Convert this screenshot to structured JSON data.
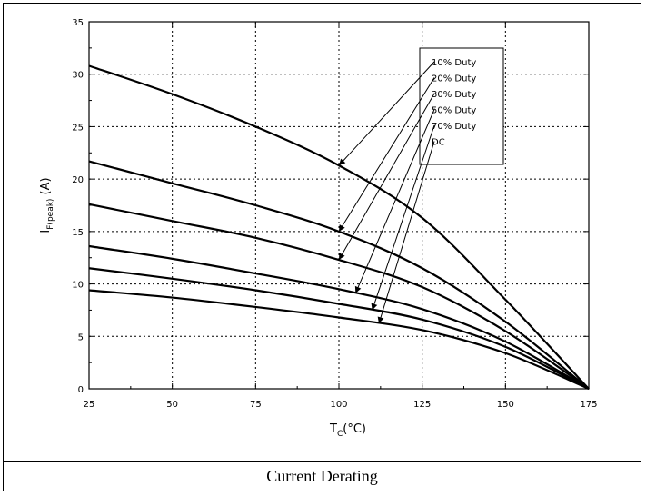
{
  "caption": "Current Derating",
  "chart_data": {
    "type": "line",
    "xlabel_main": "T",
    "xlabel_sub": "C",
    "xlabel_unit": "(°C)",
    "ylabel_main": "I",
    "ylabel_sub": "F(peak)",
    "ylabel_unit": "(A)",
    "xlim": [
      25,
      175
    ],
    "ylim": [
      0,
      35
    ],
    "xticks": [
      25,
      50,
      75,
      100,
      125,
      150,
      175
    ],
    "yticks": [
      0,
      5,
      10,
      15,
      20,
      25,
      30,
      35
    ],
    "grid": true,
    "legend_position": "top-right",
    "series": [
      {
        "name": "10% Duty",
        "x": [
          25,
          50,
          75,
          100,
          125,
          150,
          175
        ],
        "y": [
          30.8,
          28.1,
          25.0,
          21.3,
          16.3,
          8.5,
          0
        ]
      },
      {
        "name": "20% Duty",
        "x": [
          25,
          50,
          75,
          100,
          125,
          150,
          175
        ],
        "y": [
          21.7,
          19.6,
          17.5,
          15.0,
          11.5,
          6.4,
          0
        ]
      },
      {
        "name": "30% Duty",
        "x": [
          25,
          50,
          75,
          100,
          125,
          150,
          175
        ],
        "y": [
          17.6,
          16.0,
          14.4,
          12.3,
          9.7,
          5.5,
          0
        ]
      },
      {
        "name": "50% Duty",
        "x": [
          25,
          50,
          75,
          100,
          125,
          150,
          175
        ],
        "y": [
          13.6,
          12.4,
          11.0,
          9.5,
          7.6,
          4.5,
          0
        ]
      },
      {
        "name": "70% Duty",
        "x": [
          25,
          50,
          75,
          100,
          125,
          150,
          175
        ],
        "y": [
          11.5,
          10.5,
          9.4,
          8.1,
          6.6,
          4.0,
          0
        ]
      },
      {
        "name": "DC",
        "x": [
          25,
          50,
          75,
          100,
          125,
          150,
          175
        ],
        "y": [
          9.4,
          8.7,
          7.8,
          6.8,
          5.6,
          3.4,
          0
        ]
      }
    ]
  }
}
